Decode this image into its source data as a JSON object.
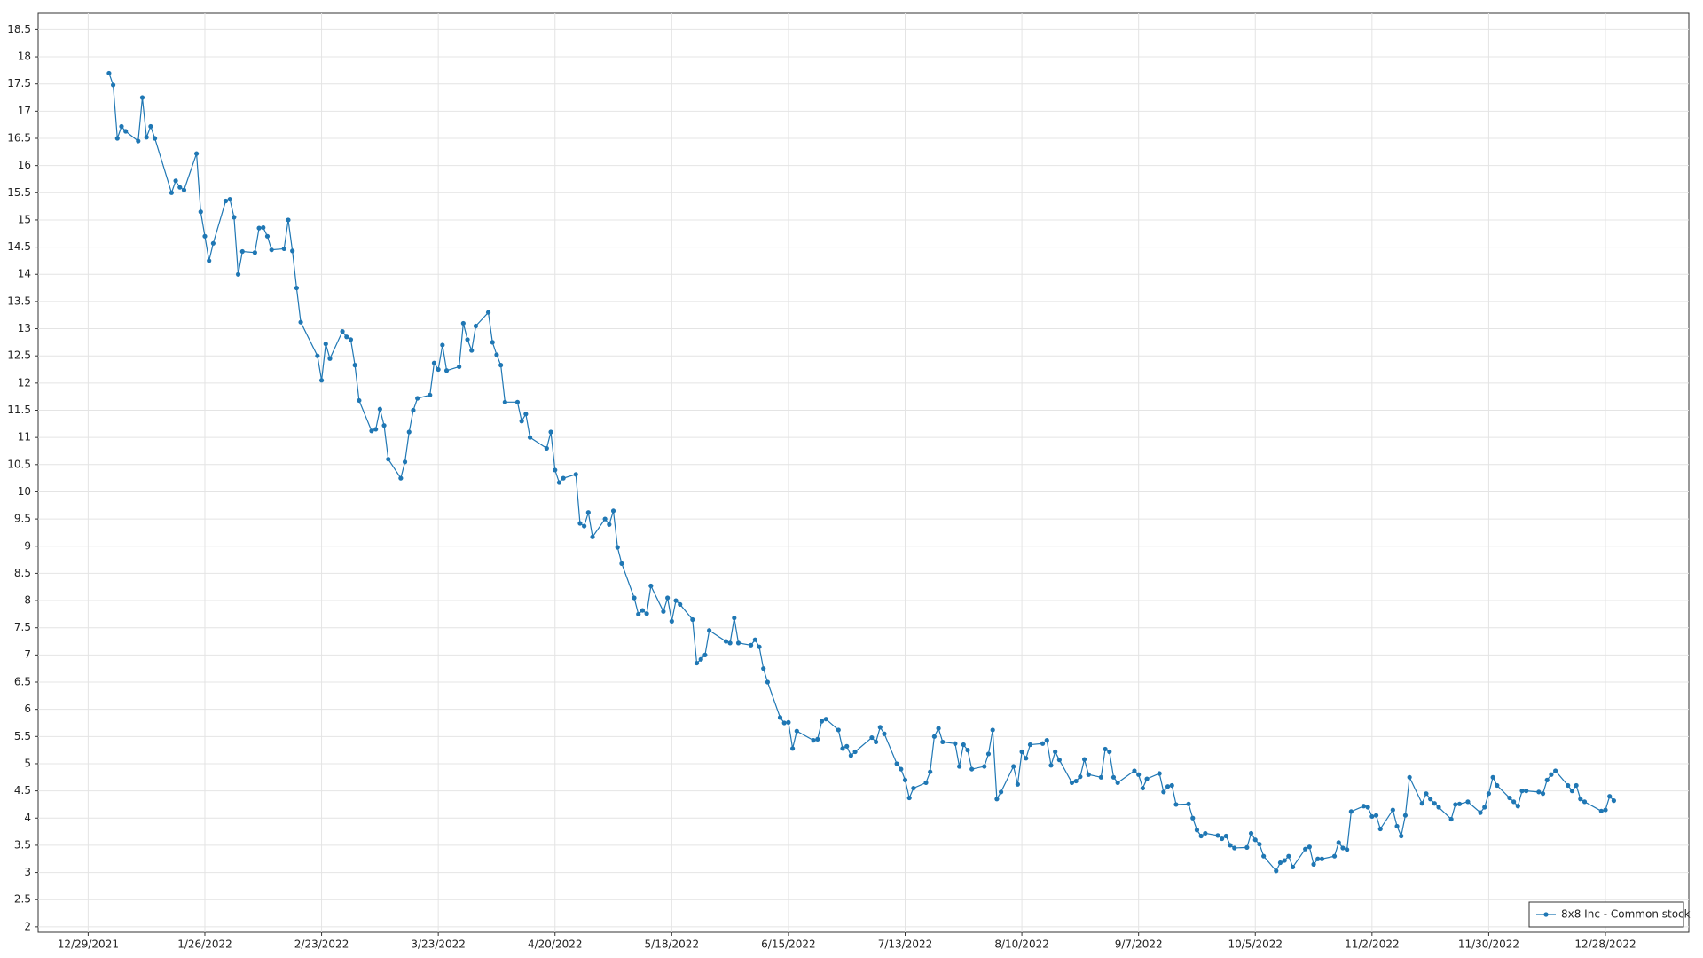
{
  "chart_data": {
    "type": "line",
    "x": [
      "1/3/2022",
      "1/4/2022",
      "1/5/2022",
      "1/6/2022",
      "1/7/2022",
      "1/10/2022",
      "1/11/2022",
      "1/12/2022",
      "1/13/2022",
      "1/14/2022",
      "1/18/2022",
      "1/19/2022",
      "1/20/2022",
      "1/21/2022",
      "1/24/2022",
      "1/25/2022",
      "1/26/2022",
      "1/27/2022",
      "1/28/2022",
      "1/31/2022",
      "2/1/2022",
      "2/2/2022",
      "2/3/2022",
      "2/4/2022",
      "2/7/2022",
      "2/8/2022",
      "2/9/2022",
      "2/10/2022",
      "2/11/2022",
      "2/14/2022",
      "2/15/2022",
      "2/16/2022",
      "2/17/2022",
      "2/18/2022",
      "2/22/2022",
      "2/23/2022",
      "2/24/2022",
      "2/25/2022",
      "2/28/2022",
      "3/1/2022",
      "3/2/2022",
      "3/3/2022",
      "3/4/2022",
      "3/7/2022",
      "3/8/2022",
      "3/9/2022",
      "3/10/2022",
      "3/11/2022",
      "3/14/2022",
      "3/15/2022",
      "3/16/2022",
      "3/17/2022",
      "3/18/2022",
      "3/21/2022",
      "3/22/2022",
      "3/23/2022",
      "3/24/2022",
      "3/25/2022",
      "3/28/2022",
      "3/29/2022",
      "3/30/2022",
      "3/31/2022",
      "4/1/2022",
      "4/4/2022",
      "4/5/2022",
      "4/6/2022",
      "4/7/2022",
      "4/8/2022",
      "4/11/2022",
      "4/12/2022",
      "4/13/2022",
      "4/14/2022",
      "4/18/2022",
      "4/19/2022",
      "4/20/2022",
      "4/21/2022",
      "4/22/2022",
      "4/25/2022",
      "4/26/2022",
      "4/27/2022",
      "4/28/2022",
      "4/29/2022",
      "5/2/2022",
      "5/3/2022",
      "5/4/2022",
      "5/5/2022",
      "5/6/2022",
      "5/9/2022",
      "5/10/2022",
      "5/11/2022",
      "5/12/2022",
      "5/13/2022",
      "5/16/2022",
      "5/17/2022",
      "5/18/2022",
      "5/19/2022",
      "5/20/2022",
      "5/23/2022",
      "5/24/2022",
      "5/25/2022",
      "5/26/2022",
      "5/27/2022",
      "5/31/2022",
      "6/1/2022",
      "6/2/2022",
      "6/3/2022",
      "6/6/2022",
      "6/7/2022",
      "6/8/2022",
      "6/9/2022",
      "6/10/2022",
      "6/13/2022",
      "6/14/2022",
      "6/15/2022",
      "6/16/2022",
      "6/17/2022",
      "6/21/2022",
      "6/22/2022",
      "6/23/2022",
      "6/24/2022",
      "6/27/2022",
      "6/28/2022",
      "6/29/2022",
      "6/30/2022",
      "7/1/2022",
      "7/5/2022",
      "7/6/2022",
      "7/7/2022",
      "7/8/2022",
      "7/11/2022",
      "7/12/2022",
      "7/13/2022",
      "7/14/2022",
      "7/15/2022",
      "7/18/2022",
      "7/19/2022",
      "7/20/2022",
      "7/21/2022",
      "7/22/2022",
      "7/25/2022",
      "7/26/2022",
      "7/27/2022",
      "7/28/2022",
      "7/29/2022",
      "8/1/2022",
      "8/2/2022",
      "8/3/2022",
      "8/4/2022",
      "8/5/2022",
      "8/8/2022",
      "8/9/2022",
      "8/10/2022",
      "8/11/2022",
      "8/12/2022",
      "8/15/2022",
      "8/16/2022",
      "8/17/2022",
      "8/18/2022",
      "8/19/2022",
      "8/22/2022",
      "8/23/2022",
      "8/24/2022",
      "8/25/2022",
      "8/26/2022",
      "8/29/2022",
      "8/30/2022",
      "8/31/2022",
      "9/1/2022",
      "9/2/2022",
      "9/6/2022",
      "9/7/2022",
      "9/8/2022",
      "9/9/2022",
      "9/12/2022",
      "9/13/2022",
      "9/14/2022",
      "9/15/2022",
      "9/16/2022",
      "9/19/2022",
      "9/20/2022",
      "9/21/2022",
      "9/22/2022",
      "9/23/2022",
      "9/26/2022",
      "9/27/2022",
      "9/28/2022",
      "9/29/2022",
      "9/30/2022",
      "10/3/2022",
      "10/4/2022",
      "10/5/2022",
      "10/6/2022",
      "10/7/2022",
      "10/10/2022",
      "10/11/2022",
      "10/12/2022",
      "10/13/2022",
      "10/14/2022",
      "10/17/2022",
      "10/18/2022",
      "10/19/2022",
      "10/20/2022",
      "10/21/2022",
      "10/24/2022",
      "10/25/2022",
      "10/26/2022",
      "10/27/2022",
      "10/28/2022",
      "10/31/2022",
      "11/1/2022",
      "11/2/2022",
      "11/3/2022",
      "11/4/2022",
      "11/7/2022",
      "11/8/2022",
      "11/9/2022",
      "11/10/2022",
      "11/11/2022",
      "11/14/2022",
      "11/15/2022",
      "11/16/2022",
      "11/17/2022",
      "11/18/2022",
      "11/21/2022",
      "11/22/2022",
      "11/23/2022",
      "11/25/2022",
      "11/28/2022",
      "11/29/2022",
      "11/30/2022",
      "12/1/2022",
      "12/2/2022",
      "12/5/2022",
      "12/6/2022",
      "12/7/2022",
      "12/8/2022",
      "12/9/2022",
      "12/12/2022",
      "12/13/2022",
      "12/14/2022",
      "12/15/2022",
      "12/16/2022",
      "12/19/2022",
      "12/20/2022",
      "12/21/2022",
      "12/22/2022",
      "12/23/2022",
      "12/27/2022",
      "12/28/2022",
      "12/29/2022",
      "12/30/2022"
    ],
    "series": [
      {
        "name": "8x8 Inc - Common stock",
        "color": "#1f77b4",
        "values": [
          17.7,
          17.48,
          16.5,
          16.72,
          16.63,
          16.45,
          17.25,
          16.52,
          16.72,
          16.5,
          15.5,
          15.72,
          15.6,
          15.55,
          16.22,
          15.15,
          14.7,
          14.25,
          14.57,
          15.35,
          15.38,
          15.05,
          14.0,
          14.42,
          14.4,
          14.85,
          14.86,
          14.7,
          14.45,
          14.47,
          15.0,
          14.43,
          13.75,
          13.12,
          12.5,
          12.05,
          12.72,
          12.45,
          12.95,
          12.85,
          12.8,
          12.33,
          11.68,
          11.12,
          11.15,
          11.52,
          11.22,
          10.6,
          10.25,
          10.55,
          11.1,
          11.5,
          11.72,
          11.78,
          12.37,
          12.25,
          12.7,
          12.23,
          12.3,
          13.1,
          12.8,
          12.6,
          13.05,
          13.3,
          12.75,
          12.52,
          12.33,
          11.65,
          11.65,
          11.3,
          11.43,
          11.0,
          10.8,
          11.1,
          10.4,
          10.17,
          10.25,
          10.32,
          9.42,
          9.37,
          9.62,
          9.17,
          9.5,
          9.4,
          9.65,
          8.98,
          8.68,
          8.05,
          7.75,
          7.82,
          7.76,
          8.27,
          7.8,
          8.05,
          7.62,
          8.0,
          7.93,
          7.65,
          6.85,
          6.92,
          7.0,
          7.45,
          7.25,
          7.22,
          7.68,
          7.22,
          7.18,
          7.28,
          7.15,
          6.75,
          6.5,
          5.85,
          5.75,
          5.76,
          5.28,
          5.6,
          5.43,
          5.45,
          5.78,
          5.82,
          5.62,
          5.28,
          5.32,
          5.15,
          5.22,
          5.48,
          5.4,
          5.67,
          5.55,
          5.0,
          4.9,
          4.7,
          4.37,
          4.55,
          4.65,
          4.85,
          5.5,
          5.65,
          5.4,
          5.37,
          4.95,
          5.35,
          5.25,
          4.9,
          4.95,
          5.18,
          5.62,
          4.35,
          4.48,
          4.95,
          4.62,
          5.22,
          5.1,
          5.35,
          5.37,
          5.43,
          4.97,
          5.22,
          5.07,
          4.65,
          4.68,
          4.76,
          5.08,
          4.8,
          4.75,
          5.27,
          5.22,
          4.75,
          4.65,
          4.87,
          4.8,
          4.55,
          4.72,
          4.82,
          4.48,
          4.58,
          4.6,
          4.25,
          4.26,
          4.0,
          3.78,
          3.67,
          3.72,
          3.68,
          3.62,
          3.67,
          3.5,
          3.45,
          3.46,
          3.72,
          3.6,
          3.52,
          3.3,
          3.03,
          3.18,
          3.22,
          3.3,
          3.1,
          3.43,
          3.47,
          3.15,
          3.25,
          3.25,
          3.3,
          3.55,
          3.45,
          3.42,
          4.12,
          4.22,
          4.2,
          4.03,
          4.05,
          3.8,
          4.15,
          3.85,
          3.67,
          4.05,
          4.75,
          4.27,
          4.45,
          4.35,
          4.27,
          4.2,
          3.98,
          4.25,
          4.26,
          4.3,
          4.1,
          4.2,
          4.45,
          4.75,
          4.6,
          4.37,
          4.3,
          4.22,
          4.5,
          4.5,
          4.48,
          4.45,
          4.7,
          4.8,
          4.87,
          4.6,
          4.5,
          4.6,
          4.35,
          4.3,
          4.13,
          4.15,
          4.4,
          4.32
        ]
      }
    ],
    "xlim": [
      "12/17/2021",
      "1/17/2023"
    ],
    "xticks": [
      "12/29/2021",
      "1/26/2022",
      "2/23/2022",
      "3/23/2022",
      "4/20/2022",
      "5/18/2022",
      "6/15/2022",
      "7/13/2022",
      "8/10/2022",
      "9/7/2022",
      "10/5/2022",
      "11/2/2022",
      "11/30/2022",
      "12/28/2022"
    ],
    "ylim": [
      1.9,
      18.8
    ],
    "yticks": [
      2,
      2.5,
      3,
      3.5,
      4,
      4.5,
      5,
      5.5,
      6,
      6.5,
      7,
      7.5,
      8,
      8.5,
      9,
      9.5,
      10,
      10.5,
      11,
      11.5,
      12,
      12.5,
      13,
      13.5,
      14,
      14.5,
      15,
      15.5,
      16,
      16.5,
      17,
      17.5,
      18,
      18.5
    ],
    "grid": true,
    "markers": true,
    "legend": "lower right"
  }
}
